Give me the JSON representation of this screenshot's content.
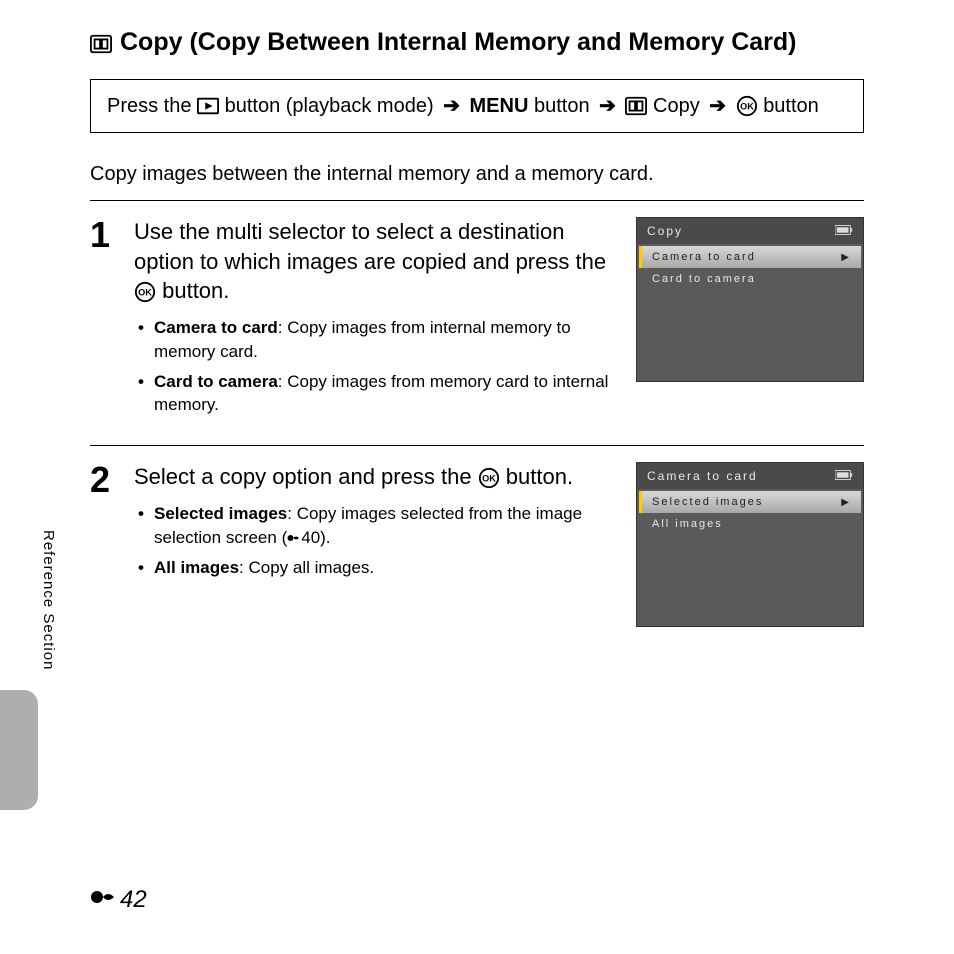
{
  "title": "Copy (Copy Between Internal Memory and Memory Card)",
  "breadcrumb": {
    "press": "Press the",
    "playback_btn": "button (playback mode)",
    "menu_word": "MENU",
    "button_word": "button",
    "copy_word": "Copy"
  },
  "intro": "Copy images between the internal memory and a memory card.",
  "side_label": "Reference Section",
  "page_number": "42",
  "steps": [
    {
      "num": "1",
      "text_a": "Use the multi selector to select a destination option to which images are copied and press the ",
      "text_b": " button.",
      "bullets": [
        {
          "label": "Camera to card",
          "desc": ": Copy images from internal memory to memory card."
        },
        {
          "label": "Card to camera",
          "desc": ": Copy images from memory card to internal memory."
        }
      ],
      "screen": {
        "title": "Copy",
        "items": [
          "Camera to card",
          "Card to camera"
        ],
        "selected_index": 0
      }
    },
    {
      "num": "2",
      "text_a": "Select a copy option and press the ",
      "text_b": " button.",
      "bullets": [
        {
          "label": "Selected images",
          "desc": ": Copy images selected from the image selection screen (",
          "ref": "40).",
          "has_ref": true
        },
        {
          "label": "All images",
          "desc": ": Copy all images."
        }
      ],
      "screen": {
        "title": "Camera to card",
        "items": [
          "Selected images",
          "All images"
        ],
        "selected_index": 0
      }
    }
  ]
}
